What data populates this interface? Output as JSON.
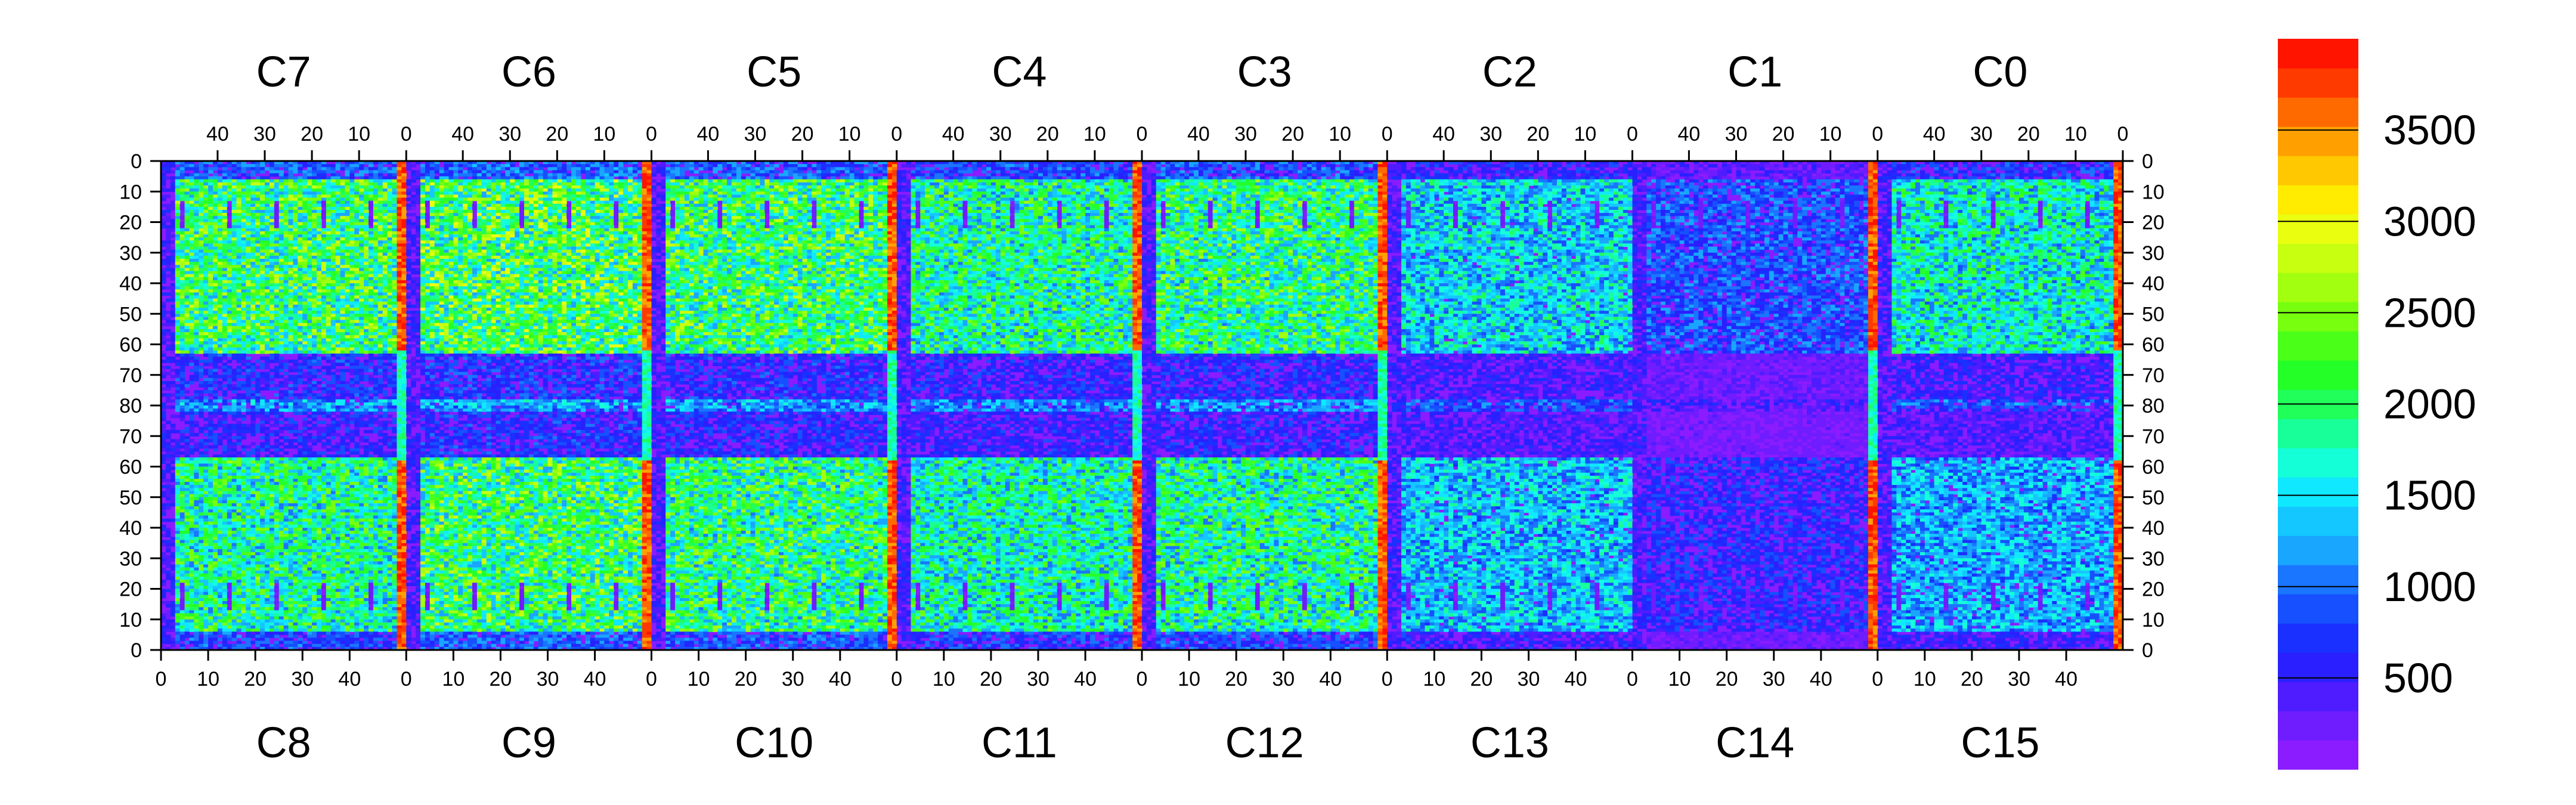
{
  "chart_data": {
    "type": "heatmap",
    "title": "",
    "xlabel": "",
    "ylabel": "",
    "top_chip_labels": [
      "C7",
      "C6",
      "C5",
      "C4",
      "C3",
      "C2",
      "C1",
      "C0"
    ],
    "bottom_chip_labels": [
      "C8",
      "C9",
      "C10",
      "C11",
      "C12",
      "C13",
      "C14",
      "C15"
    ],
    "top_tick_labels": [
      "40",
      "30",
      "20",
      "10",
      "0"
    ],
    "bottom_tick_labels": [
      "0",
      "10",
      "20",
      "30",
      "40"
    ],
    "y_tick_labels": [
      "0",
      "10",
      "20",
      "30",
      "40",
      "50",
      "60",
      "70",
      "80",
      "70",
      "60",
      "50",
      "40",
      "30",
      "20",
      "10",
      "0"
    ],
    "chip_columns": 52,
    "rows": 160,
    "colorbar": {
      "min": 0,
      "max": 4000,
      "tick_labels": [
        "500",
        "1000",
        "1500",
        "2000",
        "2500",
        "3000",
        "3500"
      ],
      "tick_values": [
        500,
        1000,
        1500,
        2000,
        2500,
        3000,
        3500
      ],
      "colors": [
        "#8a1cff",
        "#6f1cff",
        "#4f1cff",
        "#2a20ff",
        "#1a30ff",
        "#1650ff",
        "#1a75ff",
        "#19a6ff",
        "#14c8ff",
        "#10e8ff",
        "#14ffd8",
        "#18ff9a",
        "#20ff5a",
        "#24ff28",
        "#4aff18",
        "#78ff10",
        "#a2ff10",
        "#c8ff10",
        "#eaff10",
        "#ffec00",
        "#ffc800",
        "#ffa000",
        "#ff6a00",
        "#ff3a00",
        "#ff1400"
      ]
    },
    "chips": [
      {
        "top": "C7",
        "bottom": "C8",
        "upper_level": 2100,
        "lower_level": 1900,
        "hot_column": true
      },
      {
        "top": "C6",
        "bottom": "C9",
        "upper_level": 2200,
        "lower_level": 2100,
        "hot_column": true
      },
      {
        "top": "C5",
        "bottom": "C10",
        "upper_level": 2100,
        "lower_level": 2000,
        "hot_column": true
      },
      {
        "top": "C4",
        "bottom": "C11",
        "upper_level": 1900,
        "lower_level": 1800,
        "hot_column": true
      },
      {
        "top": "C3",
        "bottom": "C12",
        "upper_level": 2000,
        "lower_level": 1900,
        "hot_column": true
      },
      {
        "top": "C2",
        "bottom": "C13",
        "upper_level": 1500,
        "lower_level": 1400,
        "hot_column": false
      },
      {
        "top": "C1",
        "bottom": "C14",
        "upper_level": 900,
        "lower_level": 700,
        "hot_column": true
      },
      {
        "top": "C0",
        "bottom": "C15",
        "upper_level": 1700,
        "lower_level": 1300,
        "hot_column": true
      }
    ]
  }
}
